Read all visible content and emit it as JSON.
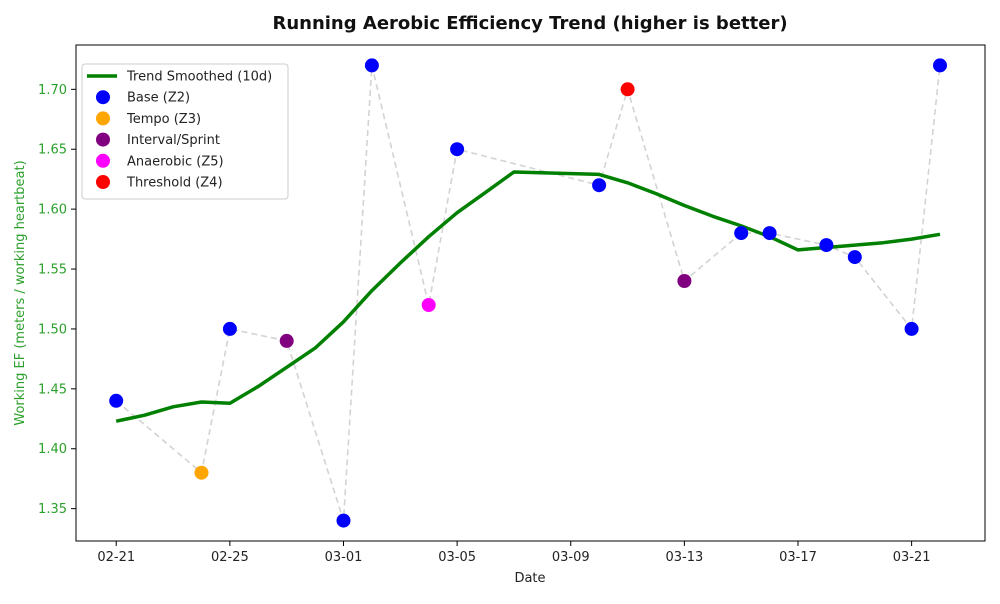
{
  "chart_data": {
    "type": "line",
    "title": "Running Aerobic Efficiency Trend (higher is better)",
    "xlabel": "Date",
    "ylabel": "Working EF (meters / working heartbeat)",
    "xlim": [
      "2025-02-19 14:00",
      "2025-03-23 14:00"
    ],
    "ylim": [
      1.323,
      1.737
    ],
    "grid": false,
    "legend_placement": "top-left",
    "colors": {
      "trend": "#008000",
      "connector": "#d3d3d3",
      "ylabel_and_ticks": "#2ca02c",
      "axes": "#000000"
    },
    "x_ticks": [
      {
        "date": "2025-02-21",
        "label": "02-21"
      },
      {
        "date": "2025-02-25",
        "label": "02-25"
      },
      {
        "date": "2025-03-01",
        "label": "03-01"
      },
      {
        "date": "2025-03-05",
        "label": "03-05"
      },
      {
        "date": "2025-03-09",
        "label": "03-09"
      },
      {
        "date": "2025-03-13",
        "label": "03-13"
      },
      {
        "date": "2025-03-17",
        "label": "03-17"
      },
      {
        "date": "2025-03-21",
        "label": "03-21"
      }
    ],
    "y_ticks": [
      {
        "value": 1.35,
        "label": "1.35"
      },
      {
        "value": 1.4,
        "label": "1.40"
      },
      {
        "value": 1.45,
        "label": "1.45"
      },
      {
        "value": 1.5,
        "label": "1.50"
      },
      {
        "value": 1.55,
        "label": "1.55"
      },
      {
        "value": 1.6,
        "label": "1.60"
      },
      {
        "value": 1.65,
        "label": "1.65"
      },
      {
        "value": 1.7,
        "label": "1.70"
      }
    ],
    "legend": [
      {
        "label": "Trend Smoothed (10d)",
        "kind": "line",
        "color": "#008000"
      },
      {
        "label": "Base (Z2)",
        "kind": "marker",
        "color": "#0000ff"
      },
      {
        "label": "Tempo (Z3)",
        "kind": "marker",
        "color": "#ffa500"
      },
      {
        "label": "Interval/Sprint",
        "kind": "marker",
        "color": "#800080"
      },
      {
        "label": "Anaerobic (Z5)",
        "kind": "marker",
        "color": "#ff00ff"
      },
      {
        "label": "Threshold (Z4)",
        "kind": "marker",
        "color": "#ff0000"
      }
    ],
    "runs": [
      {
        "date": "2025-02-21",
        "ef": 1.44,
        "zone": "Base (Z2)",
        "color": "#0000ff"
      },
      {
        "date": "2025-02-24",
        "ef": 1.38,
        "zone": "Tempo (Z3)",
        "color": "#ffa500"
      },
      {
        "date": "2025-02-25",
        "ef": 1.5,
        "zone": "Base (Z2)",
        "color": "#0000ff"
      },
      {
        "date": "2025-02-27",
        "ef": 1.49,
        "zone": "Interval/Sprint",
        "color": "#800080"
      },
      {
        "date": "2025-03-01",
        "ef": 1.34,
        "zone": "Base (Z2)",
        "color": "#0000ff"
      },
      {
        "date": "2025-03-02",
        "ef": 1.72,
        "zone": "Base (Z2)",
        "color": "#0000ff"
      },
      {
        "date": "2025-03-04",
        "ef": 1.52,
        "zone": "Anaerobic (Z5)",
        "color": "#ff00ff"
      },
      {
        "date": "2025-03-05",
        "ef": 1.65,
        "zone": "Base (Z2)",
        "color": "#0000ff"
      },
      {
        "date": "2025-03-10",
        "ef": 1.62,
        "zone": "Base (Z2)",
        "color": "#0000ff"
      },
      {
        "date": "2025-03-11",
        "ef": 1.7,
        "zone": "Threshold (Z4)",
        "color": "#ff0000"
      },
      {
        "date": "2025-03-13",
        "ef": 1.54,
        "zone": "Interval/Sprint",
        "color": "#800080"
      },
      {
        "date": "2025-03-15",
        "ef": 1.58,
        "zone": "Base (Z2)",
        "color": "#0000ff"
      },
      {
        "date": "2025-03-16",
        "ef": 1.58,
        "zone": "Base (Z2)",
        "color": "#0000ff"
      },
      {
        "date": "2025-03-18",
        "ef": 1.57,
        "zone": "Base (Z2)",
        "color": "#0000ff"
      },
      {
        "date": "2025-03-19",
        "ef": 1.56,
        "zone": "Base (Z2)",
        "color": "#0000ff"
      },
      {
        "date": "2025-03-21",
        "ef": 1.5,
        "zone": "Base (Z2)",
        "color": "#0000ff"
      },
      {
        "date": "2025-03-22",
        "ef": 1.72,
        "zone": "Base (Z2)",
        "color": "#0000ff"
      }
    ],
    "trend": [
      {
        "date": "2025-02-21",
        "ef": 1.423
      },
      {
        "date": "2025-02-22",
        "ef": 1.428
      },
      {
        "date": "2025-02-23",
        "ef": 1.435
      },
      {
        "date": "2025-02-24",
        "ef": 1.439
      },
      {
        "date": "2025-02-25",
        "ef": 1.438
      },
      {
        "date": "2025-02-26",
        "ef": 1.452
      },
      {
        "date": "2025-02-27",
        "ef": 1.468
      },
      {
        "date": "2025-02-28",
        "ef": 1.484
      },
      {
        "date": "2025-03-01",
        "ef": 1.506
      },
      {
        "date": "2025-03-02",
        "ef": 1.532
      },
      {
        "date": "2025-03-03",
        "ef": 1.555
      },
      {
        "date": "2025-03-04",
        "ef": 1.577
      },
      {
        "date": "2025-03-05",
        "ef": 1.597
      },
      {
        "date": "2025-03-06",
        "ef": 1.614
      },
      {
        "date": "2025-03-07",
        "ef": 1.631
      },
      {
        "date": "2025-03-10",
        "ef": 1.629
      },
      {
        "date": "2025-03-11",
        "ef": 1.622
      },
      {
        "date": "2025-03-12",
        "ef": 1.613
      },
      {
        "date": "2025-03-13",
        "ef": 1.603
      },
      {
        "date": "2025-03-14",
        "ef": 1.594
      },
      {
        "date": "2025-03-15",
        "ef": 1.586
      },
      {
        "date": "2025-03-16",
        "ef": 1.577
      },
      {
        "date": "2025-03-17",
        "ef": 1.566
      },
      {
        "date": "2025-03-18",
        "ef": 1.568
      },
      {
        "date": "2025-03-19",
        "ef": 1.57
      },
      {
        "date": "2025-03-20",
        "ef": 1.572
      },
      {
        "date": "2025-03-21",
        "ef": 1.575
      },
      {
        "date": "2025-03-22",
        "ef": 1.579
      }
    ]
  }
}
